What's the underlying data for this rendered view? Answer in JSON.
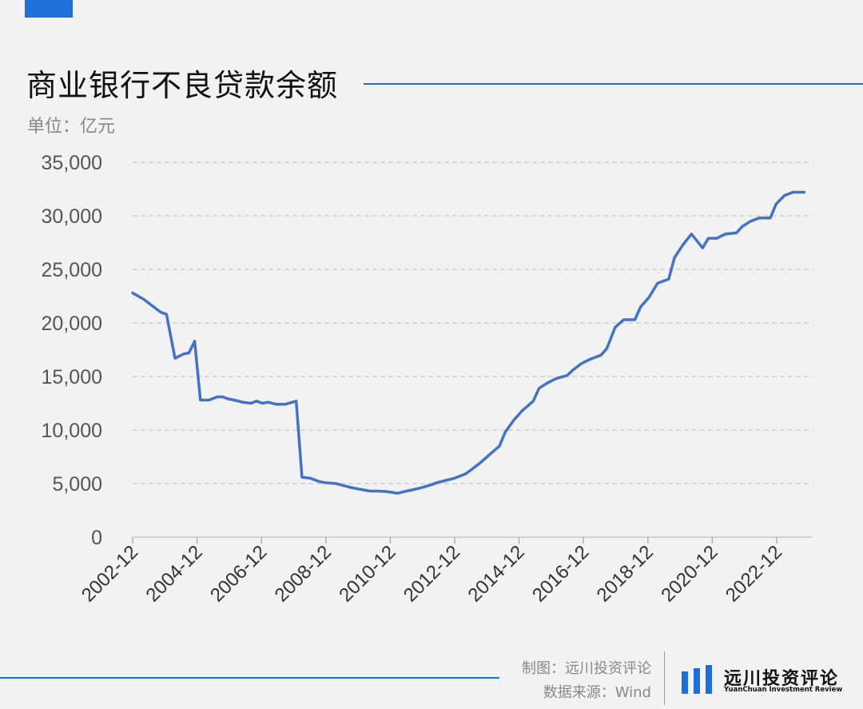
{
  "header": {
    "title": "商业银行不良贷款余额",
    "unit": "单位：亿元"
  },
  "footer": {
    "credit_chart": "制图：远川投资评论",
    "credit_source": "数据来源：Wind",
    "logo_name": "远川投资评论",
    "logo_subtitle": "YuanChuan Investment Review"
  },
  "colors": {
    "accent": "#1f6fd9",
    "series_line": "#4472c4",
    "grid": "#cfcfcf",
    "background": "#f2f2f2"
  },
  "chart_data": {
    "type": "line",
    "title": "商业银行不良贷款余额",
    "ylabel": "单位：亿元",
    "xlabel": "",
    "ylim": [
      0,
      35000
    ],
    "yticks": [
      0,
      5000,
      10000,
      15000,
      20000,
      25000,
      30000,
      35000
    ],
    "ytick_labels": [
      "0",
      "5,000",
      "10,000",
      "15,000",
      "20,000",
      "25,000",
      "30,000",
      "35,000"
    ],
    "xtick_labels": [
      "2002-12",
      "2004-12",
      "2006-12",
      "2008-12",
      "2010-12",
      "2012-12",
      "2014-12",
      "2016-12",
      "2018-12",
      "2020-12",
      "2022-12"
    ],
    "grid": "horizontal-dashed",
    "legend": "none",
    "series": [
      {
        "values": [
          [
            2002.92,
            22800
          ],
          [
            2003.25,
            22200
          ],
          [
            2003.5,
            21600
          ],
          [
            2003.75,
            21000
          ],
          [
            2003.92,
            20800
          ],
          [
            2004.17,
            16700
          ],
          [
            2004.42,
            17100
          ],
          [
            2004.58,
            17200
          ],
          [
            2004.75,
            18300
          ],
          [
            2004.92,
            12800
          ],
          [
            2005.17,
            12800
          ],
          [
            2005.42,
            13100
          ],
          [
            2005.58,
            13100
          ],
          [
            2005.75,
            12900
          ],
          [
            2005.92,
            12800
          ],
          [
            2006.17,
            12600
          ],
          [
            2006.42,
            12500
          ],
          [
            2006.58,
            12700
          ],
          [
            2006.75,
            12500
          ],
          [
            2006.92,
            12600
          ],
          [
            2007.17,
            12400
          ],
          [
            2007.42,
            12400
          ],
          [
            2007.75,
            12700
          ],
          [
            2007.92,
            5600
          ],
          [
            2008.17,
            5500
          ],
          [
            2008.42,
            5200
          ],
          [
            2008.58,
            5100
          ],
          [
            2008.92,
            5000
          ],
          [
            2009.17,
            4800
          ],
          [
            2009.42,
            4600
          ],
          [
            2009.75,
            4400
          ],
          [
            2009.92,
            4300
          ],
          [
            2010.17,
            4300
          ],
          [
            2010.42,
            4250
          ],
          [
            2010.75,
            4100
          ],
          [
            2011.0,
            4300
          ],
          [
            2011.17,
            4400
          ],
          [
            2011.42,
            4600
          ],
          [
            2011.75,
            4900
          ],
          [
            2011.92,
            5100
          ],
          [
            2012.17,
            5300
          ],
          [
            2012.42,
            5500
          ],
          [
            2012.75,
            5900
          ],
          [
            2012.92,
            6300
          ],
          [
            2013.17,
            6900
          ],
          [
            2013.42,
            7600
          ],
          [
            2013.75,
            8500
          ],
          [
            2013.92,
            9800
          ],
          [
            2014.17,
            10900
          ],
          [
            2014.42,
            11800
          ],
          [
            2014.75,
            12700
          ],
          [
            2014.92,
            13900
          ],
          [
            2015.17,
            14400
          ],
          [
            2015.42,
            14800
          ],
          [
            2015.75,
            15100
          ],
          [
            2015.92,
            15600
          ],
          [
            2016.17,
            16200
          ],
          [
            2016.42,
            16600
          ],
          [
            2016.75,
            17000
          ],
          [
            2016.92,
            17600
          ],
          [
            2017.17,
            19600
          ],
          [
            2017.42,
            20300
          ],
          [
            2017.75,
            20300
          ],
          [
            2017.92,
            21500
          ],
          [
            2018.17,
            22400
          ],
          [
            2018.42,
            23700
          ],
          [
            2018.75,
            24100
          ],
          [
            2018.92,
            26100
          ],
          [
            2019.17,
            27300
          ],
          [
            2019.42,
            28300
          ],
          [
            2019.75,
            27000
          ],
          [
            2019.92,
            27900
          ],
          [
            2020.17,
            27900
          ],
          [
            2020.42,
            28300
          ],
          [
            2020.75,
            28400
          ],
          [
            2020.92,
            29000
          ],
          [
            2021.17,
            29500
          ],
          [
            2021.42,
            29800
          ],
          [
            2021.75,
            29800
          ],
          [
            2021.92,
            31100
          ],
          [
            2022.17,
            31900
          ],
          [
            2022.42,
            32200
          ],
          [
            2022.75,
            32200
          ]
        ]
      }
    ]
  }
}
